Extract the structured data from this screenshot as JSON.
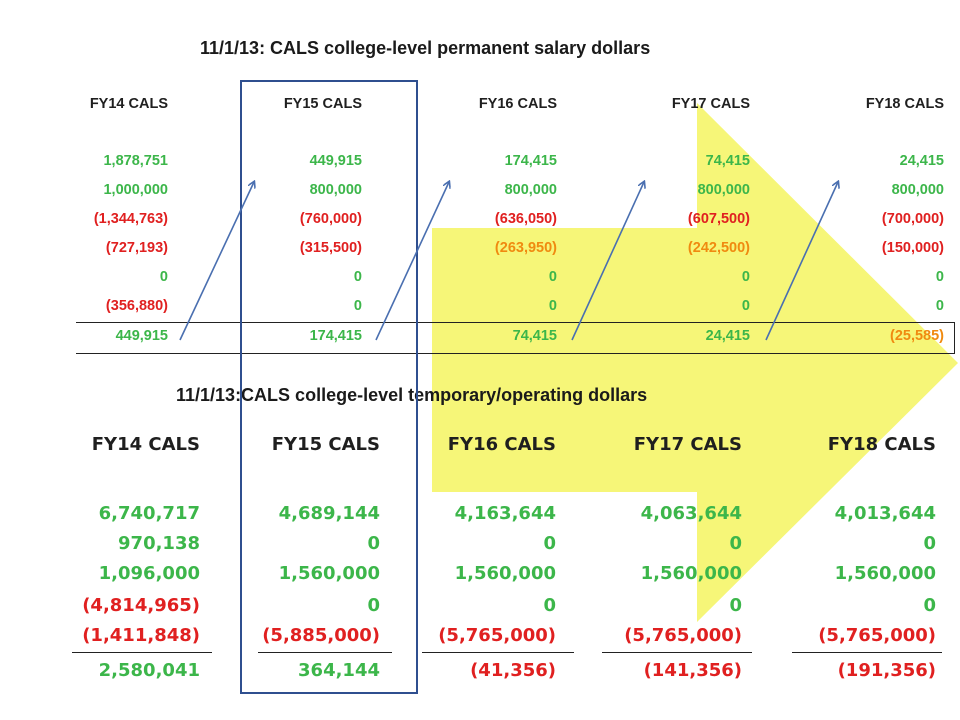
{
  "slide": {
    "title_permanent": "11/1/13:  CALS college-level permanent salary dollars",
    "title_temporary": "11/1/13:CALS college-level temporary/operating dollars"
  },
  "permanent": {
    "headers": [
      "FY14 CALS",
      "FY15 CALS",
      "FY16 CALS",
      "FY17 CALS",
      "FY18 CALS"
    ],
    "rows": [
      [
        "1,878,751",
        "449,915",
        "174,415",
        "74,415",
        "24,415"
      ],
      [
        "1,000,000",
        "800,000",
        "800,000",
        "800,000",
        "800,000"
      ],
      [
        "(1,344,763)",
        "(760,000)",
        "(636,050)",
        "(607,500)",
        "(700,000)"
      ],
      [
        "(727,193)",
        "(315,500)",
        "(263,950)",
        "(242,500)",
        "(150,000)"
      ],
      [
        "0",
        "0",
        "0",
        "0",
        "0"
      ],
      [
        "(356,880)",
        "0",
        "0",
        "0",
        "0"
      ]
    ],
    "totals": [
      "449,915",
      "174,415",
      "74,415",
      "24,415",
      "(25,585)"
    ],
    "colors": [
      [
        "green",
        "green",
        "green",
        "green",
        "green"
      ],
      [
        "green",
        "green",
        "green",
        "green",
        "green"
      ],
      [
        "red",
        "red",
        "red",
        "red",
        "red"
      ],
      [
        "red",
        "red",
        "orange",
        "orange",
        "red"
      ],
      [
        "green",
        "green",
        "green",
        "green",
        "green"
      ],
      [
        "red",
        "green",
        "green",
        "green",
        "green"
      ]
    ],
    "total_colors": [
      "green",
      "green",
      "green",
      "green",
      "orange"
    ]
  },
  "temporary": {
    "headers": [
      "FY14 CALS",
      "FY15 CALS",
      "FY16 CALS",
      "FY17 CALS",
      "FY18 CALS"
    ],
    "rows": [
      [
        "6,740,717",
        "4,689,144",
        "4,163,644",
        "4,063,644",
        "4,013,644"
      ],
      [
        "970,138",
        "0",
        "0",
        "0",
        "0"
      ],
      [
        "1,096,000",
        "1,560,000",
        "1,560,000",
        "1,560,000",
        "1,560,000"
      ],
      [
        "(4,814,965)",
        "0",
        "0",
        "0",
        "0"
      ],
      [
        "(1,411,848)",
        "(5,885,000)",
        "(5,765,000)",
        "(5,765,000)",
        "(5,765,000)"
      ]
    ],
    "totals": [
      "2,580,041",
      "364,144",
      "(41,356)",
      "(141,356)",
      "(191,356)"
    ],
    "colors": [
      [
        "green",
        "green",
        "green",
        "green",
        "green"
      ],
      [
        "green",
        "green",
        "green",
        "green",
        "green"
      ],
      [
        "green",
        "green",
        "green",
        "green",
        "green"
      ],
      [
        "red",
        "green",
        "green",
        "green",
        "green"
      ],
      [
        "red",
        "red",
        "red",
        "red",
        "red"
      ]
    ],
    "total_colors": [
      "green",
      "green",
      "red",
      "red",
      "red"
    ]
  },
  "palette": {
    "green": "#3cb64a",
    "red": "#e02020",
    "orange": "#f08a10",
    "highlight_arrow": "#f5f571",
    "box_outline": "#2f4f8f",
    "carry_arrow": "#4a6fb0"
  }
}
